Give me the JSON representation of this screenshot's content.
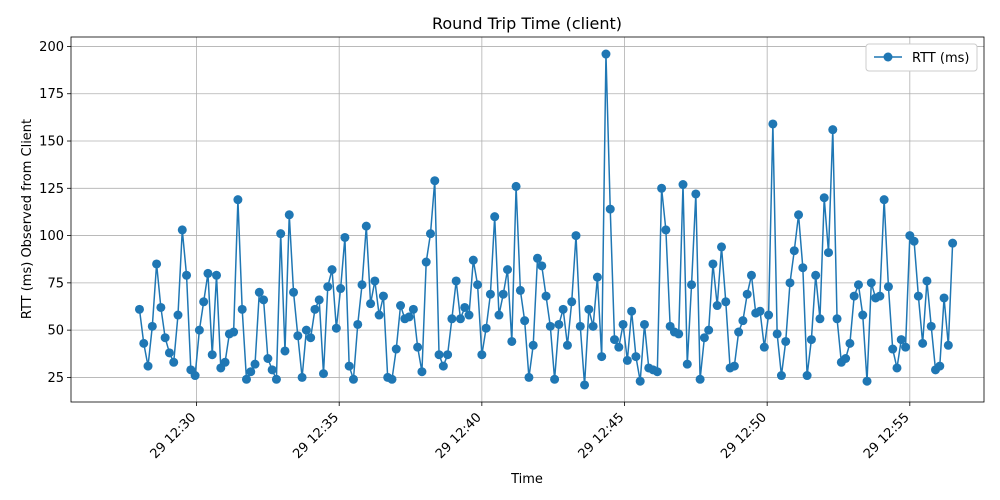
{
  "chart_data": {
    "type": "line",
    "title": "Round Trip Time (client)",
    "xlabel": "Time",
    "ylabel": "RTT (ms) Observed from Client",
    "x_ticks": [
      "29 12:30",
      "29 12:35",
      "29 12:40",
      "29 12:45",
      "29 12:50",
      "29 12:55"
    ],
    "y_ticks": [
      25,
      50,
      75,
      100,
      125,
      150,
      175,
      200
    ],
    "ylim": [
      12,
      205
    ],
    "xlim_minutes": [
      25.6,
      57.6
    ],
    "grid": true,
    "legend_position": "top-right",
    "colors": {
      "line": "#1f77b4",
      "grid": "#b0b0b0"
    },
    "series": [
      {
        "name": "RTT (ms)",
        "start_time": "12:28",
        "interval_seconds": 9,
        "values": [
          61,
          43,
          31,
          52,
          85,
          62,
          46,
          38,
          33,
          58,
          103,
          79,
          29,
          26,
          50,
          65,
          80,
          37,
          79,
          30,
          33,
          48,
          49,
          119,
          61,
          24,
          28,
          32,
          70,
          66,
          35,
          29,
          24,
          101,
          39,
          111,
          70,
          47,
          25,
          50,
          46,
          61,
          66,
          27,
          73,
          82,
          51,
          72,
          99,
          31,
          24,
          53,
          74,
          105,
          64,
          76,
          58,
          68,
          25,
          24,
          40,
          63,
          56,
          57,
          61,
          41,
          28,
          86,
          101,
          129,
          37,
          31,
          37,
          56,
          76,
          56,
          62,
          58,
          87,
          74,
          37,
          51,
          69,
          110,
          58,
          69,
          82,
          44,
          126,
          71,
          55,
          25,
          42,
          88,
          84,
          68,
          52,
          24,
          53,
          61,
          42,
          65,
          100,
          52,
          21,
          61,
          52,
          78,
          36,
          196,
          114,
          45,
          41,
          53,
          34,
          60,
          36,
          23,
          53,
          30,
          29,
          28,
          125,
          103,
          52,
          49,
          48,
          127,
          32,
          74,
          122,
          24,
          46,
          50,
          85,
          63,
          94,
          65,
          30,
          31,
          49,
          55,
          69,
          79,
          59,
          60,
          41,
          58,
          159,
          48,
          26,
          44,
          75,
          92,
          111,
          83,
          26,
          45,
          79,
          56,
          120,
          91,
          156,
          56,
          33,
          35,
          43,
          68,
          74,
          58,
          23,
          75,
          67,
          68,
          119,
          73,
          40,
          30,
          45,
          41,
          100,
          97,
          68,
          43,
          76,
          52,
          29,
          31,
          67,
          42,
          96
        ]
      }
    ]
  }
}
